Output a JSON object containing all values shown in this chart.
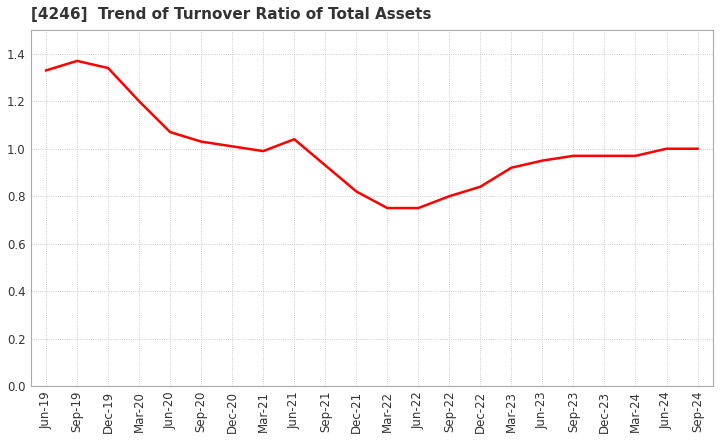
{
  "title": "[4246]  Trend of Turnover Ratio of Total Assets",
  "line_color": "#FF0000",
  "background_color": "#FFFFFF",
  "grid_color": "#BBBBBB",
  "ylim": [
    0.0,
    1.5
  ],
  "yticks": [
    0.0,
    0.2,
    0.4,
    0.6,
    0.8,
    1.0,
    1.2,
    1.4
  ],
  "labels": [
    "Jun-19",
    "Sep-19",
    "Dec-19",
    "Mar-20",
    "Jun-20",
    "Sep-20",
    "Dec-20",
    "Mar-21",
    "Jun-21",
    "Sep-21",
    "Dec-21",
    "Mar-22",
    "Jun-22",
    "Sep-22",
    "Dec-22",
    "Mar-23",
    "Jun-23",
    "Sep-23",
    "Dec-23",
    "Mar-24",
    "Jun-24",
    "Sep-24"
  ],
  "values": [
    1.33,
    1.37,
    1.34,
    1.2,
    1.07,
    1.03,
    1.01,
    0.99,
    1.04,
    0.93,
    0.82,
    0.75,
    0.75,
    0.8,
    0.84,
    0.92,
    0.95,
    0.97,
    0.97,
    0.97,
    1.0,
    1.0
  ],
  "title_fontsize": 11,
  "tick_fontsize": 8.5,
  "line_width": 1.8
}
